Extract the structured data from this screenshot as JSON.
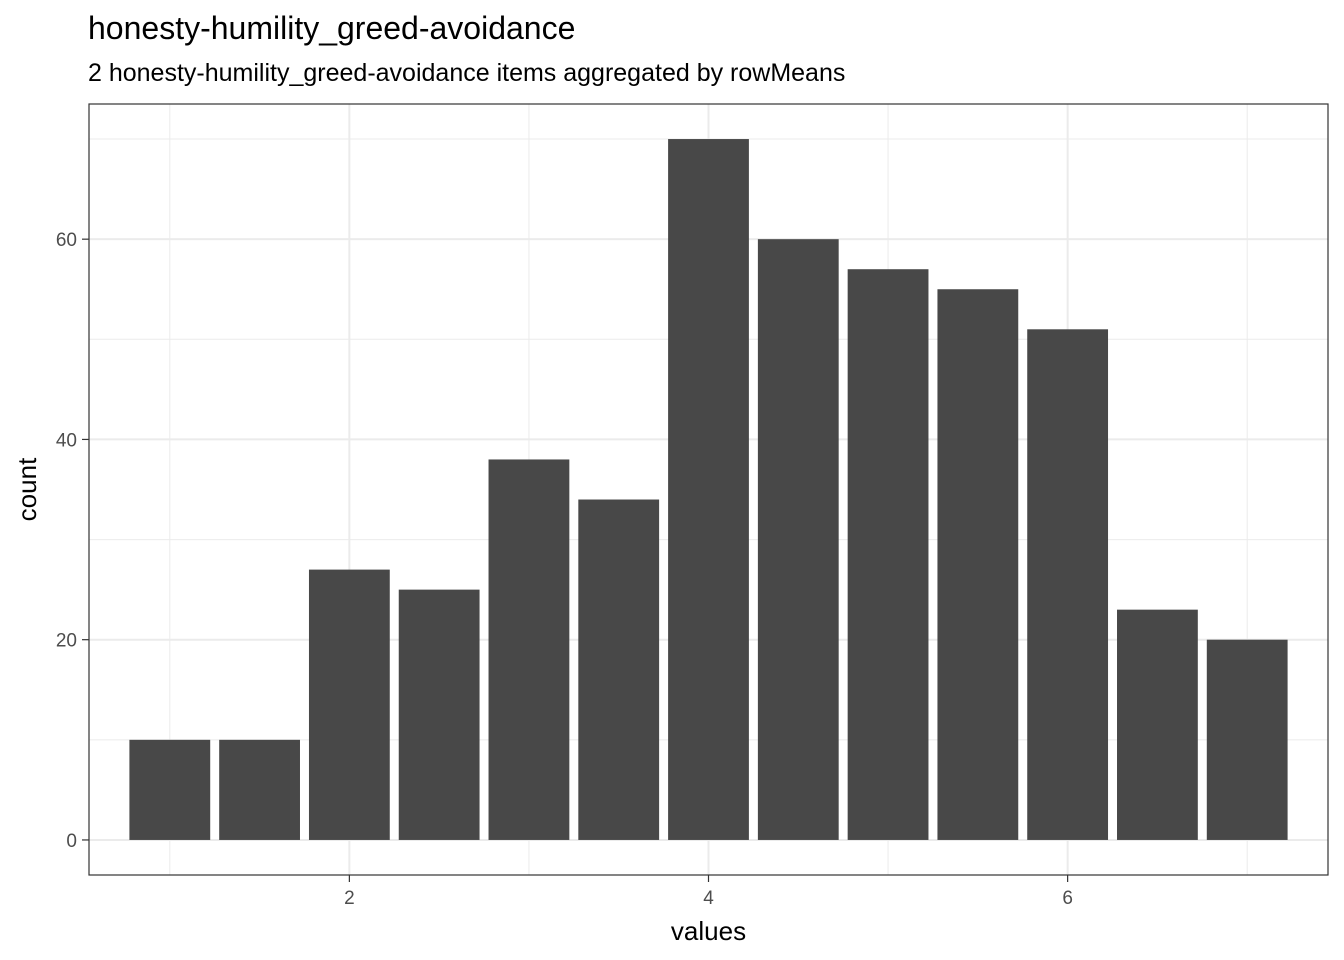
{
  "chart_data": {
    "type": "bar",
    "title": "honesty-humility_greed-avoidance",
    "subtitle": "2 honesty-humility_greed-avoidance items aggregated by rowMeans",
    "xlabel": "values",
    "ylabel": "count",
    "x": [
      1,
      1.5,
      2,
      2.5,
      3,
      3.5,
      4,
      4.5,
      5,
      5.5,
      6,
      6.5,
      7
    ],
    "values": [
      10,
      10,
      27,
      25,
      38,
      34,
      70,
      60,
      57,
      55,
      51,
      23,
      20
    ],
    "xticks": [
      2,
      4,
      6
    ],
    "yticks": [
      0,
      20,
      40,
      60
    ],
    "xlim": [
      0.55,
      7.45
    ],
    "ylim": [
      -3.5,
      73.5
    ],
    "bar_color": "#484848",
    "grid": true,
    "theme": "bw"
  }
}
